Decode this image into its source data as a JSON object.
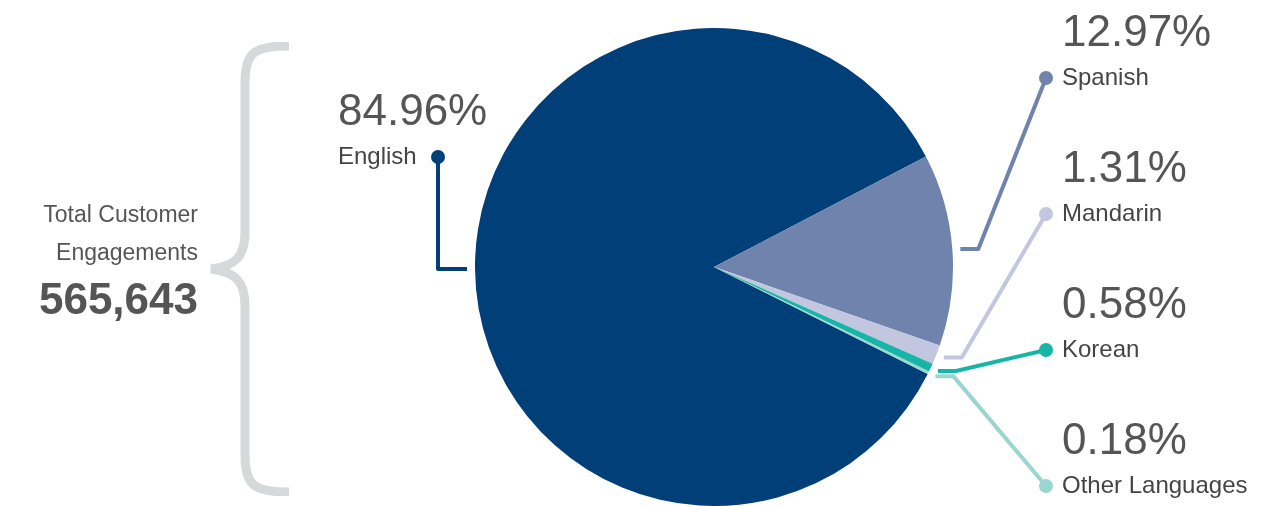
{
  "chart_data": {
    "type": "pie",
    "categories": [
      "English",
      "Spanish",
      "Mandarin",
      "Korean",
      "Other Languages"
    ],
    "values": [
      84.96,
      12.97,
      1.31,
      0.58,
      0.18
    ],
    "value_labels": [
      "84.96%",
      "12.97%",
      "1.31%",
      "0.58%",
      "0.18%"
    ],
    "colors": [
      "#003f78",
      "#7083ad",
      "#c3c6df",
      "#17b5a8",
      "#9ad5d0"
    ],
    "annotations": [
      "Total Customer Engagements",
      "565,643"
    ],
    "legend": "right"
  }
}
